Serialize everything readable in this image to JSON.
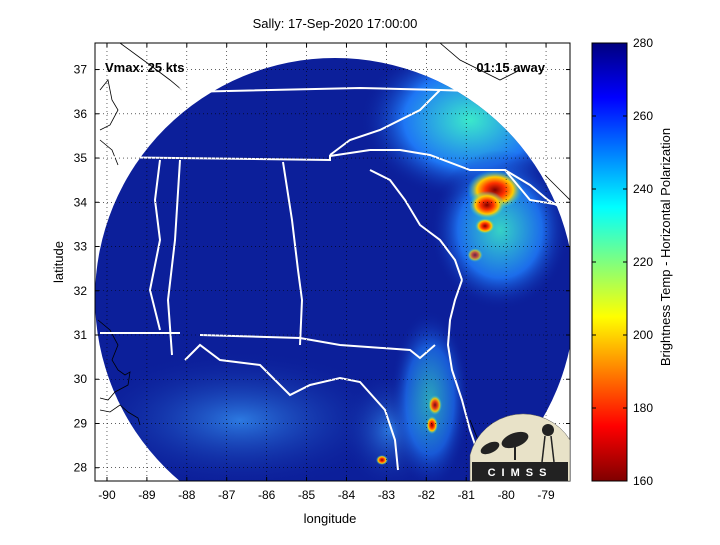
{
  "title": "Sally: 17-Sep-2020 17:00:00",
  "annotations": {
    "vmax": "Vmax: 25 kts",
    "time_away": "01:15 away"
  },
  "axes": {
    "xlabel": "longitude",
    "ylabel": "latitude",
    "x_ticks": [
      "-90",
      "-89",
      "-88",
      "-87",
      "-86",
      "-85",
      "-84",
      "-83",
      "-82",
      "-81",
      "-80",
      "-79"
    ],
    "y_ticks": [
      "28",
      "29",
      "30",
      "31",
      "32",
      "33",
      "34",
      "35",
      "36",
      "37"
    ],
    "xlim": [
      -90.3,
      -78.4
    ],
    "ylim": [
      27.7,
      37.6
    ],
    "grid": true
  },
  "colorbar": {
    "label": "Brightness Temp - Horizontal Polarization",
    "ticks": [
      "280",
      "260",
      "240",
      "220",
      "200",
      "180",
      "160"
    ],
    "range": [
      160,
      280
    ],
    "colormap": "jet",
    "colors": [
      "#7f0000",
      "#ff0000",
      "#ffff00",
      "#00ffff",
      "#0000ff",
      "#00007f"
    ]
  },
  "logo": {
    "text": "CIMSS"
  },
  "colors": {
    "background": "#ffffff",
    "scan_fill": "#0c1f9a",
    "boundary": "#ffffff",
    "coastline_outside": "#000000"
  }
}
